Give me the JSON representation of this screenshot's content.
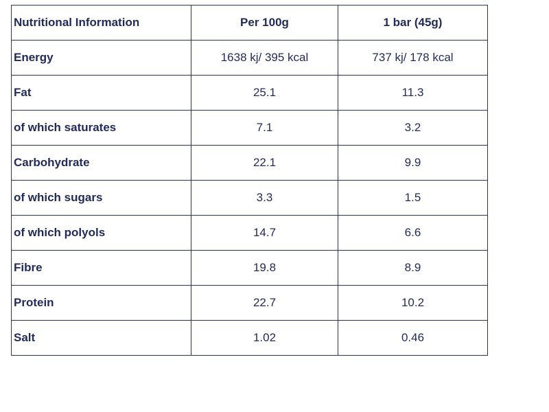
{
  "table": {
    "headers": [
      "Nutritional Information",
      "Per 100g",
      "1 bar (45g)"
    ],
    "rows": [
      {
        "label": "Energy",
        "per_100g": "1638 kj/ 395 kcal",
        "per_bar": "737 kj/ 178 kcal"
      },
      {
        "label": "Fat",
        "per_100g": "25.1",
        "per_bar": "11.3"
      },
      {
        "label": "of which saturates",
        "per_100g": "7.1",
        "per_bar": "3.2"
      },
      {
        "label": "Carbohydrate",
        "per_100g": "22.1",
        "per_bar": "9.9"
      },
      {
        "label": "of which sugars",
        "per_100g": "3.3",
        "per_bar": "1.5"
      },
      {
        "label": "of which polyols",
        "per_100g": "14.7",
        "per_bar": "6.6"
      },
      {
        "label": "Fibre",
        "per_100g": "19.8",
        "per_bar": "8.9"
      },
      {
        "label": "Protein",
        "per_100g": "22.7",
        "per_bar": "10.2"
      },
      {
        "label": "Salt",
        "per_100g": "1.02",
        "per_bar": "0.46"
      }
    ]
  },
  "colors": {
    "text": "#232b5d",
    "border": "#2b3262",
    "background": "#ffffff"
  }
}
